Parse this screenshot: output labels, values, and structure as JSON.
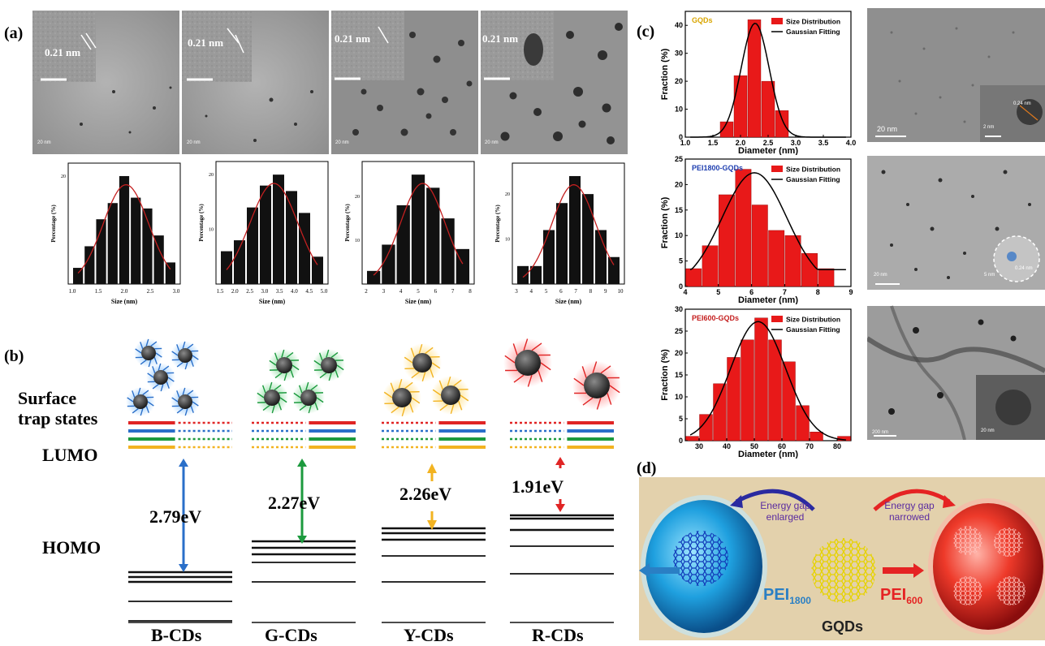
{
  "panel_letters": {
    "a": "(a)",
    "b": "(b)",
    "c": "(c)",
    "d": "(d)"
  },
  "tem_a": {
    "inset_labels": [
      "0.21 nm",
      "0.21 nm",
      "0.21 nm",
      "0.21 nm"
    ],
    "scale_labels": [
      "20 nm",
      "20 nm",
      "20 nm",
      "20 nm"
    ]
  },
  "panel_b": {
    "side_labels": {
      "surface": "Surface",
      "trap": "trap states",
      "lumo": "LUMO",
      "homo": "HOMO"
    },
    "gaps": [
      "2.79eV",
      "2.27eV",
      "2.26eV",
      "1.91eV"
    ],
    "cd_labels": [
      "B-CDs",
      "G-CDs",
      "Y-CDs",
      "R-CDs"
    ],
    "colors": {
      "blue": "#2a6fc9",
      "green": "#1c9a3e",
      "yellow": "#f2b321",
      "red": "#e02424"
    }
  },
  "panel_c_tem": {
    "scale_labels": [
      "20 nm",
      "2 nm",
      "20 nm",
      "5 nm",
      "200 nm",
      "20 nm"
    ],
    "inset_labels": [
      "0.24 nm",
      "0.24 nm"
    ]
  },
  "panel_d": {
    "left_arrow": "Energy gap enlarged",
    "left_line1": "Energy gap",
    "left_line2": "enlarged",
    "right_line1": "Energy gap",
    "right_line2": "narrowed",
    "pei_left": "PEI",
    "pei_left_sub": "1800",
    "pei_right": "PEI",
    "pei_right_sub": "600",
    "center": "GQDs"
  },
  "chart_data": [
    {
      "type": "bar",
      "id": "a1",
      "categories": [
        "1.0",
        "1.25",
        "1.5",
        "1.75",
        "2.0",
        "2.25",
        "2.5",
        "2.75",
        "3.0"
      ],
      "values": [
        3,
        7,
        12,
        15,
        20,
        16,
        14,
        9,
        4
      ],
      "xticks": [
        "1.0",
        "1.5",
        "2.0",
        "2.5",
        "3.0"
      ],
      "xlabel": "Size (nm)",
      "ylabel": "Percentage (%)",
      "yticks": [
        "20"
      ],
      "fit": "gaussian"
    },
    {
      "type": "bar",
      "id": "a2",
      "categories": [
        "1.5",
        "2.0",
        "2.5",
        "3.0",
        "3.5",
        "4.0",
        "4.5",
        "5.0"
      ],
      "values": [
        6,
        8,
        14,
        18,
        20,
        17,
        13,
        5
      ],
      "xticks": [
        "1.5",
        "2.0",
        "2.5",
        "3.0",
        "3.5",
        "4.0",
        "4.5",
        "5.0"
      ],
      "xlabel": "Size (nm)",
      "ylabel": "Percentage (%)",
      "yticks": [
        "10",
        "20"
      ],
      "fit": "gaussian"
    },
    {
      "type": "bar",
      "id": "a3",
      "categories": [
        "2",
        "3",
        "4",
        "5",
        "6",
        "7",
        "8"
      ],
      "values": [
        3,
        9,
        18,
        25,
        22,
        15,
        8
      ],
      "xticks": [
        "2",
        "3",
        "4",
        "5",
        "6",
        "7",
        "8"
      ],
      "xlabel": "Size (nm)",
      "ylabel": "Percentage (%)",
      "yticks": [
        "10",
        "20"
      ],
      "fit": "gaussian"
    },
    {
      "type": "bar",
      "id": "a4",
      "categories": [
        "3",
        "4",
        "5",
        "6",
        "7",
        "8",
        "9",
        "10"
      ],
      "values": [
        4,
        4,
        12,
        18,
        24,
        20,
        12,
        6
      ],
      "xticks": [
        "3",
        "4",
        "5",
        "6",
        "7",
        "8",
        "9",
        "10"
      ],
      "xlabel": "Size (nm)",
      "ylabel": "Percentage (%)",
      "yticks": [
        "10",
        "20"
      ],
      "fit": "gaussian"
    },
    {
      "type": "bar",
      "id": "c1",
      "title": "GQDs",
      "legend": [
        "Size Distribution",
        "Gaussian Fitting"
      ],
      "categories": [
        "1.75",
        "2.0",
        "2.25",
        "2.5",
        "2.75",
        "3.0"
      ],
      "x": [
        1.75,
        2.0,
        2.25,
        2.5,
        2.75,
        3.0
      ],
      "values": [
        5.5,
        22,
        42,
        20,
        9.5,
        0
      ],
      "xlim": [
        1.0,
        4.0
      ],
      "ylim": [
        0,
        45
      ],
      "xticks": [
        "1.0",
        "1.5",
        "2.0",
        "2.5",
        "3.0",
        "3.5",
        "4.0"
      ],
      "yticks": [
        "0",
        "10",
        "20",
        "30",
        "40"
      ],
      "xlabel": "Diameter (nm)",
      "ylabel": "Fraction (%)"
    },
    {
      "type": "bar",
      "id": "c2",
      "title": "PEI1800-GQDs",
      "legend": [
        "Size Distribution",
        "Gaussian Fitting"
      ],
      "x": [
        4.25,
        4.75,
        5.25,
        5.75,
        6.25,
        6.75,
        7.25,
        7.75,
        8.25
      ],
      "values": [
        3.5,
        8,
        18,
        23,
        16,
        11,
        10,
        6.5,
        3.5
      ],
      "xlim": [
        4,
        9
      ],
      "ylim": [
        0,
        25
      ],
      "xticks": [
        "4",
        "5",
        "6",
        "7",
        "8",
        "9"
      ],
      "yticks": [
        "0",
        "5",
        "10",
        "15",
        "20",
        "25"
      ],
      "xlabel": "Diameter (nm)",
      "ylabel": "Fraction (%)"
    },
    {
      "type": "bar",
      "id": "c3",
      "title": "PEI600-GQDs",
      "legend": [
        "Size Distribution",
        "Gaussian Fitting"
      ],
      "x": [
        27.5,
        32.5,
        37.5,
        42.5,
        47.5,
        52.5,
        57.5,
        62.5,
        67.5,
        72.5,
        77.5,
        82.5
      ],
      "values": [
        1,
        6,
        13,
        19,
        23,
        28,
        23,
        18,
        8,
        2,
        0,
        1
      ],
      "xlim": [
        25,
        85
      ],
      "ylim": [
        0,
        30
      ],
      "xticks": [
        "30",
        "40",
        "50",
        "60",
        "70",
        "80"
      ],
      "yticks": [
        "0",
        "5",
        "10",
        "15",
        "20",
        "25",
        "30"
      ],
      "xlabel": "Diameter (nm)",
      "ylabel": "Fraction (%)"
    }
  ]
}
